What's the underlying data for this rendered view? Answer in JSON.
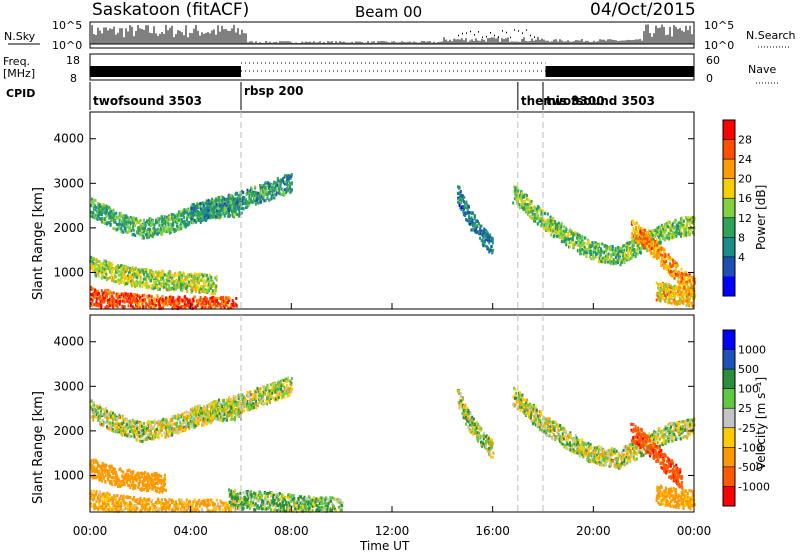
{
  "header": {
    "station": "Saskatoon (fitACF)",
    "beam": "Beam 00",
    "date": "04/Oct/2015"
  },
  "sky_panel": {
    "label": "N.Sky",
    "yticks": [
      "10^5",
      "10^0"
    ],
    "right_yticks": [
      "10^5",
      "10^0"
    ],
    "right_label": "N.Search"
  },
  "freq_panel": {
    "label_line1": "Freq.",
    "label_line2": "[MHz]",
    "yticks": [
      "18",
      "8"
    ],
    "right_yticks": [
      "60",
      "0"
    ],
    "right_label": "Nave"
  },
  "cpid": {
    "label": "CPID",
    "segments": [
      {
        "name": "twofsound 3503",
        "start_h": 0.0
      },
      {
        "name": "rbsp 200",
        "start_h": 6.0
      },
      {
        "name": "themis 3300",
        "start_h": 17.0
      },
      {
        "name": "twofsound 3503",
        "start_h": 18.0
      }
    ]
  },
  "x_axis": {
    "ticks": [
      "00:00",
      "04:00",
      "08:00",
      "12:00",
      "16:00",
      "20:00",
      "00:00"
    ],
    "tick_hours": [
      0,
      4,
      8,
      12,
      16,
      20,
      24
    ],
    "label": "Time UT",
    "range_h": [
      0,
      24
    ]
  },
  "power_panel": {
    "ylabel": "Slant Range [km]",
    "yticks": [
      "4000",
      "3000",
      "2000",
      "1000"
    ],
    "ytick_values": [
      4000,
      3000,
      2000,
      1000
    ],
    "ylim": [
      180,
      4600
    ],
    "colorbar_label": "Power [dB]",
    "colorbar_ticks": [
      "28",
      "24",
      "20",
      "16",
      "12",
      "8",
      "4"
    ],
    "colorbar_colors": [
      "#ff0000",
      "#ff4f00",
      "#ff9a00",
      "#f5d000",
      "#82d141",
      "#2ea35a",
      "#1c8c88",
      "#1f4fb3",
      "#0000ff"
    ]
  },
  "velocity_panel": {
    "ylabel": "Slant Range [km]",
    "yticks": [
      "4000",
      "3000",
      "2000",
      "1000"
    ],
    "ytick_values": [
      4000,
      3000,
      2000,
      1000
    ],
    "ylim": [
      180,
      4600
    ],
    "colorbar_label": "Velocity [m s⁻¹]",
    "colorbar_ticks": [
      "1000",
      "500",
      "100",
      "25",
      "-25",
      "-100",
      "-500",
      "-1000"
    ],
    "colorbar_colors": [
      "#0000ff",
      "#1f52b8",
      "#2a8e3c",
      "#5fca3f",
      "#c4c4c4",
      "#ffcc00",
      "#ff9800",
      "#ff5a00",
      "#ff0000"
    ]
  },
  "chart_data": [
    {
      "type": "heatmap",
      "title": "Power",
      "xlabel": "Time UT",
      "ylabel": "Slant Range [km]",
      "xlim": [
        0,
        24
      ],
      "ylim": [
        180,
        4600
      ],
      "colorbar": {
        "label": "Power [dB]",
        "range": [
          0,
          30
        ]
      },
      "series": [
        {
          "name": "",
          "x": [
            0.0,
            1.0,
            2.0,
            3.0,
            4.0,
            5.0,
            6.0
          ],
          "y": [
            2500,
            2200,
            2000,
            2100,
            2300,
            2450,
            2500
          ],
          "value": 12
        },
        {
          "name": "",
          "x": [
            4.0,
            5.0,
            6.0,
            7.0,
            8.0
          ],
          "y": [
            2350,
            2500,
            2650,
            2850,
            3050
          ],
          "value": 10
        },
        {
          "name": "",
          "x": [
            0.0,
            1.0,
            2.0,
            3.0,
            4.0,
            5.0,
            5.8
          ],
          "y": [
            500,
            380,
            320,
            290,
            280,
            270,
            260
          ],
          "value": 26
        },
        {
          "name": "",
          "x": [
            0.0,
            1.0,
            2.0,
            3.0,
            4.0,
            5.0
          ],
          "y": [
            1200,
            1000,
            900,
            850,
            800,
            750
          ],
          "value": 16
        },
        {
          "name": "",
          "x": [
            14.6,
            15.0,
            15.5,
            16.0
          ],
          "y": [
            2800,
            2300,
            1900,
            1600
          ],
          "value": 8
        },
        {
          "name": "",
          "x": [
            16.8,
            18.0,
            19.0,
            20.0,
            21.0,
            22.0,
            23.0,
            24.0
          ],
          "y": [
            2800,
            2200,
            1800,
            1500,
            1400,
            1700,
            2000,
            2100
          ],
          "value": 14
        },
        {
          "name": "",
          "x": [
            21.5,
            22.0,
            22.5,
            23.0,
            23.5,
            24.0
          ],
          "y": [
            2000,
            1800,
            1500,
            1200,
            900,
            700
          ],
          "value": 22
        },
        {
          "name": "",
          "x": [
            22.5,
            23.0,
            23.5,
            24.0
          ],
          "y": [
            600,
            550,
            500,
            480
          ],
          "value": 20
        }
      ]
    },
    {
      "type": "heatmap",
      "title": "Velocity",
      "xlabel": "Time UT",
      "ylabel": "Slant Range [km]",
      "xlim": [
        0,
        24
      ],
      "ylim": [
        180,
        4600
      ],
      "colorbar": {
        "label": "Velocity [m s⁻¹]",
        "range": [
          -1000,
          1000
        ]
      },
      "series": [
        {
          "name": "",
          "x": [
            0.0,
            1.0,
            2.0,
            3.0,
            4.0,
            5.0,
            6.0
          ],
          "y": [
            2500,
            2200,
            2000,
            2100,
            2300,
            2450,
            2500
          ],
          "value": 0
        },
        {
          "name": "",
          "x": [
            4.0,
            5.0,
            6.0,
            7.0,
            8.0
          ],
          "y": [
            2350,
            2500,
            2650,
            2850,
            3050
          ],
          "value": 0
        },
        {
          "name": "",
          "x": [
            0.0,
            1.0,
            2.0,
            3.0,
            4.0,
            5.0,
            5.8
          ],
          "y": [
            500,
            380,
            320,
            290,
            280,
            270,
            260
          ],
          "value": -150
        },
        {
          "name": "",
          "x": [
            0.0,
            1.0,
            2.0,
            3.0
          ],
          "y": [
            1200,
            1000,
            900,
            850
          ],
          "value": -300
        },
        {
          "name": "",
          "x": [
            5.5,
            7.0,
            8.0,
            9.0,
            10.0
          ],
          "y": [
            500,
            450,
            400,
            350,
            300
          ],
          "value": 80
        },
        {
          "name": "",
          "x": [
            14.6,
            15.0,
            15.5,
            16.0
          ],
          "y": [
            2800,
            2300,
            1900,
            1600
          ],
          "value": 0
        },
        {
          "name": "",
          "x": [
            16.8,
            18.0,
            19.0,
            20.0,
            21.0,
            22.0,
            23.0,
            24.0
          ],
          "y": [
            2800,
            2200,
            1800,
            1500,
            1400,
            1700,
            2000,
            2100
          ],
          "value": 0
        },
        {
          "name": "",
          "x": [
            21.5,
            22.0,
            22.5,
            23.0,
            23.5
          ],
          "y": [
            2000,
            1800,
            1500,
            1200,
            900
          ],
          "value": -900
        },
        {
          "name": "",
          "x": [
            22.5,
            23.0,
            23.5,
            24.0
          ],
          "y": [
            600,
            550,
            500,
            480
          ],
          "value": -200
        }
      ]
    }
  ]
}
